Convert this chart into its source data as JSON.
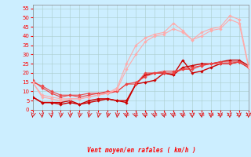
{
  "background_color": "#cceeff",
  "grid_color": "#aacccc",
  "x_min": 0,
  "x_max": 23,
  "y_min": 0,
  "y_max": 57,
  "y_ticks": [
    0,
    5,
    10,
    15,
    20,
    25,
    30,
    35,
    40,
    45,
    50,
    55
  ],
  "x_ticks": [
    0,
    1,
    2,
    3,
    4,
    5,
    6,
    7,
    8,
    9,
    10,
    11,
    12,
    13,
    14,
    15,
    16,
    17,
    18,
    19,
    20,
    21,
    22,
    23
  ],
  "xlabel": "Vent moyen/en rafales ( km/h )",
  "lines": [
    {
      "x": [
        0,
        1,
        2,
        3,
        4,
        5,
        6,
        7,
        8,
        9,
        10,
        11,
        12,
        13,
        14,
        15,
        16,
        17,
        18,
        19,
        20,
        21,
        22,
        23
      ],
      "y": [
        7,
        4,
        4,
        4,
        5,
        3,
        5,
        6,
        6,
        5,
        4,
        14,
        19,
        20,
        20,
        19,
        23,
        24,
        25,
        25,
        26,
        27,
        27,
        24
      ],
      "color": "#cc0000",
      "marker": "D",
      "markersize": 1.8,
      "linewidth": 1.0
    },
    {
      "x": [
        0,
        1,
        2,
        3,
        4,
        5,
        6,
        7,
        8,
        9,
        10,
        11,
        12,
        13,
        14,
        15,
        16,
        17,
        18,
        19,
        20,
        21,
        22,
        23
      ],
      "y": [
        7,
        4,
        4,
        3,
        4,
        3,
        4,
        5,
        6,
        5,
        5,
        14,
        15,
        16,
        20,
        19,
        27,
        20,
        21,
        23,
        25,
        25,
        26,
        23
      ],
      "color": "#cc0000",
      "marker": "D",
      "markersize": 1.8,
      "linewidth": 1.0
    },
    {
      "x": [
        0,
        1,
        2,
        3,
        4,
        5,
        6,
        7,
        8,
        9,
        10,
        11,
        12,
        13,
        14,
        15,
        16,
        17,
        18,
        19,
        20,
        21,
        22,
        23
      ],
      "y": [
        16,
        12,
        9,
        7,
        8,
        8,
        9,
        9,
        9,
        10,
        14,
        14,
        20,
        20,
        20,
        20,
        22,
        22,
        24,
        25,
        25,
        25,
        26,
        23
      ],
      "color": "#ee4444",
      "marker": "D",
      "markersize": 1.8,
      "linewidth": 0.8
    },
    {
      "x": [
        0,
        1,
        2,
        3,
        4,
        5,
        6,
        7,
        8,
        9,
        10,
        11,
        12,
        13,
        14,
        15,
        16,
        17,
        18,
        19,
        20,
        21,
        22,
        23
      ],
      "y": [
        15,
        13,
        10,
        8,
        8,
        7,
        8,
        9,
        10,
        10,
        14,
        15,
        18,
        20,
        21,
        21,
        22,
        23,
        24,
        25,
        26,
        26,
        26,
        23
      ],
      "color": "#ee4444",
      "marker": "D",
      "markersize": 1.8,
      "linewidth": 0.8
    },
    {
      "x": [
        0,
        1,
        2,
        3,
        4,
        5,
        6,
        7,
        8,
        9,
        10,
        11,
        12,
        13,
        14,
        15,
        16,
        17,
        18,
        19,
        20,
        21,
        22,
        23
      ],
      "y": [
        15,
        8,
        7,
        6,
        6,
        6,
        7,
        8,
        9,
        12,
        25,
        35,
        39,
        41,
        42,
        47,
        43,
        38,
        42,
        44,
        45,
        51,
        49,
        24
      ],
      "color": "#ffaaaa",
      "marker": "D",
      "markersize": 1.8,
      "linewidth": 0.8
    },
    {
      "x": [
        0,
        1,
        2,
        3,
        4,
        5,
        6,
        7,
        8,
        9,
        10,
        11,
        12,
        13,
        14,
        15,
        16,
        17,
        18,
        19,
        20,
        21,
        22,
        23
      ],
      "y": [
        15,
        7,
        6,
        5,
        6,
        6,
        7,
        8,
        9,
        11,
        22,
        30,
        37,
        40,
        41,
        44,
        42,
        38,
        40,
        43,
        44,
        49,
        47,
        23
      ],
      "color": "#ffaaaa",
      "marker": "D",
      "markersize": 1.8,
      "linewidth": 0.8
    }
  ],
  "wind_arrows": {
    "angles": [
      200,
      170,
      170,
      185,
      185,
      195,
      200,
      200,
      195,
      190,
      160,
      150,
      155,
      155,
      155,
      160,
      165,
      170,
      170,
      175,
      175,
      175,
      175,
      185
    ],
    "color": "#cc0000"
  }
}
